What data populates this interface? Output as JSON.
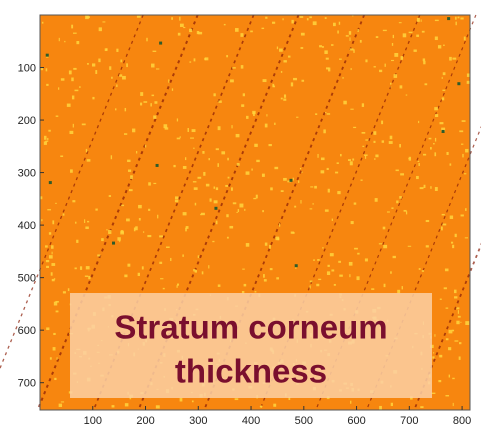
{
  "chart_data": {
    "type": "image",
    "colormap": [
      "#f7860f",
      "#ffd53d",
      "#8a1c06",
      "#2f5b2a"
    ],
    "xlim": [
      0,
      815
    ],
    "ylim": [
      0,
      752
    ],
    "y_reversed": true,
    "xticks": [
      100,
      200,
      300,
      400,
      500,
      600,
      700,
      800
    ],
    "yticks": [
      100,
      200,
      300,
      400,
      500,
      600,
      700
    ],
    "annotation": [
      "Stratum corneum",
      "thickness"
    ]
  }
}
